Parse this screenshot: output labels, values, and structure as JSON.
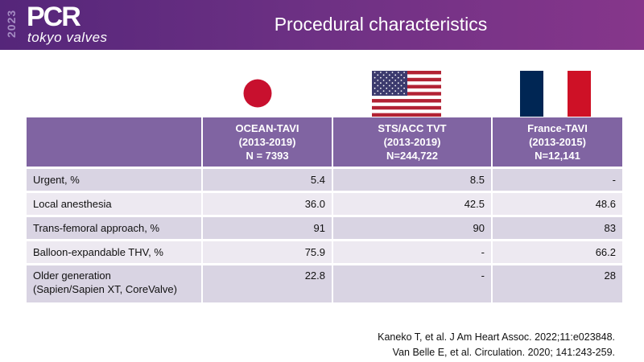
{
  "header": {
    "year": "2023",
    "logo": "PCR",
    "subtitle": "tokyo valves",
    "title": "Procedural characteristics",
    "colors": {
      "start": "#55267a",
      "end": "#86368b"
    }
  },
  "flags": [
    "japan-flag",
    "usa-flag",
    "france-flag"
  ],
  "table": {
    "columns": [
      {
        "name": "OCEAN-TAVI",
        "period": "(2013-2019)",
        "n": "N = 7393"
      },
      {
        "name": "STS/ACC TVT",
        "period": "(2013-2019)",
        "n": "N=244,722"
      },
      {
        "name": "France-TAVI",
        "period": "(2013-2015)",
        "n": "N=12,141"
      }
    ],
    "rows": [
      {
        "label": "Urgent, %",
        "values": [
          "5.4",
          "8.5",
          "-"
        ]
      },
      {
        "label": "Local anesthesia",
        "values": [
          "36.0",
          "42.5",
          "48.6"
        ]
      },
      {
        "label": "Trans-femoral approach, %",
        "values": [
          "91",
          "90",
          "83"
        ]
      },
      {
        "label": "Balloon-expandable THV, %",
        "values": [
          "75.9",
          "-",
          "66.2"
        ]
      },
      {
        "label": "Older generation",
        "label2": "(Sapien/Sapien XT, CoreValve)",
        "values": [
          "22.8",
          "-",
          "28"
        ]
      }
    ]
  },
  "references": [
    "Kaneko T, et al. J Am Heart Assoc. 2022;11:e023848.",
    "Van Belle E, et al. Circulation. 2020; 141:243-259."
  ]
}
